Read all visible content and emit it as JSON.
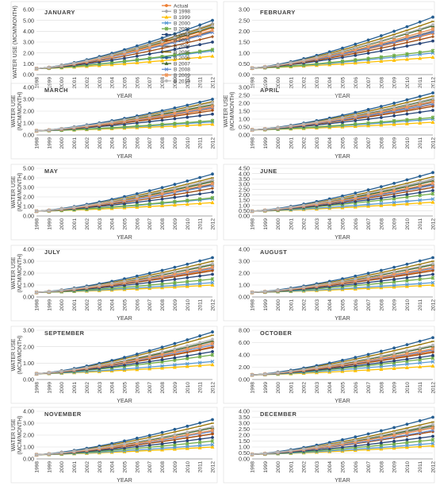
{
  "chart_data": {
    "type": "line",
    "x": [
      1998,
      1999,
      2000,
      2001,
      2002,
      2003,
      2004,
      2005,
      2006,
      2007,
      2008,
      2009,
      2010,
      2011,
      2012
    ],
    "x_tick_labels": [
      "1998",
      "1999",
      "2000",
      "2001",
      "2002",
      "2003",
      "2004",
      "2005",
      "2006",
      "2007",
      "2008",
      "2009",
      "2010",
      "2011",
      "2012"
    ],
    "xlabel": "YEAR",
    "grid": true,
    "legend_placement": "right",
    "legend_in_panel": 0,
    "series_styles": [
      {
        "name": "Actual",
        "color": "#ed7d31",
        "marker": "circle"
      },
      {
        "name": "B 1998",
        "color": "#a5a5a5",
        "marker": "diamond"
      },
      {
        "name": "B 1999",
        "color": "#ffc000",
        "marker": "triangle"
      },
      {
        "name": "B 2000",
        "color": "#5b9bd5",
        "marker": "x"
      },
      {
        "name": "B 2001",
        "color": "#70ad47",
        "marker": "star"
      },
      {
        "name": "B 2002",
        "color": "#264478",
        "marker": "circle"
      },
      {
        "name": "B 2003",
        "color": "#9e480e",
        "marker": "plus"
      },
      {
        "name": "B 2004",
        "color": "#636363",
        "marker": "dash"
      },
      {
        "name": "B 2005",
        "color": "#997300",
        "marker": "dash"
      },
      {
        "name": "B 2006",
        "color": "#255e91",
        "marker": "circle"
      },
      {
        "name": "B 2007",
        "color": "#43682b",
        "marker": "triangle"
      },
      {
        "name": "B 2008",
        "color": "#698ed0",
        "marker": "x"
      },
      {
        "name": "B 2009",
        "color": "#f1975a",
        "marker": "star"
      },
      {
        "name": "B 2010",
        "color": "#b7b7b7",
        "marker": "circle"
      }
    ],
    "panels": [
      {
        "title": "JANUARY",
        "ylabel": [
          "WATER USE (MCM/MONTH)"
        ],
        "ylim": [
          0,
          6
        ],
        "yticks": [
          "0.00",
          "1.00",
          "2.00",
          "3.00",
          "4.00",
          "5.00",
          "6.00"
        ],
        "series_end": [
          4.3,
          4.7,
          1.7,
          2.2,
          2.3,
          3.0,
          3.5,
          4.0,
          4.6,
          5.0,
          4.4,
          3.9,
          4.1,
          4.5
        ],
        "series_start": [
          0.55,
          0.55,
          0.55,
          0.55,
          0.55,
          0.55,
          0.55,
          0.55,
          0.55,
          0.55,
          0.55,
          0.55,
          0.55,
          0.55
        ]
      },
      {
        "title": "FEBRUARY",
        "ylabel": [],
        "ylim": [
          0,
          3
        ],
        "yticks": [
          "0.00",
          "0.50",
          "1.00",
          "1.50",
          "2.00",
          "2.50",
          "3.00"
        ],
        "series_end": [
          1.9,
          2.1,
          0.8,
          1.0,
          1.1,
          1.55,
          1.75,
          2.0,
          2.45,
          2.65,
          2.25,
          1.95,
          2.1,
          2.3
        ],
        "series_start": [
          0.3,
          0.3,
          0.3,
          0.3,
          0.3,
          0.3,
          0.3,
          0.3,
          0.3,
          0.3,
          0.3,
          0.3,
          0.3,
          0.3
        ]
      },
      {
        "title": "MARCH",
        "ylabel": [
          "WATER USE",
          "(MCM/MONTH)"
        ],
        "ylim": [
          0,
          4
        ],
        "yticks": [
          "0.00",
          "1.00",
          "2.00",
          "3.00",
          "4.00"
        ],
        "series_end": [
          2.2,
          2.5,
          0.9,
          1.1,
          1.2,
          1.75,
          2.05,
          2.35,
          2.8,
          3.0,
          2.55,
          2.3,
          2.4,
          2.7
        ],
        "series_start": [
          0.35,
          0.35,
          0.35,
          0.35,
          0.35,
          0.35,
          0.35,
          0.35,
          0.35,
          0.35,
          0.35,
          0.35,
          0.35,
          0.35
        ]
      },
      {
        "title": "APRIL",
        "ylabel": [
          "WATER USE",
          "(MCM/MONTH)"
        ],
        "ylim": [
          0,
          3
        ],
        "yticks": [
          "0.00",
          "0.50",
          "1.00",
          "1.50",
          "2.00",
          "2.50",
          "3.00"
        ],
        "series_end": [
          1.9,
          2.15,
          0.8,
          1.0,
          1.1,
          1.55,
          1.8,
          2.05,
          2.45,
          2.65,
          2.25,
          1.95,
          2.1,
          2.3
        ],
        "series_start": [
          0.32,
          0.32,
          0.32,
          0.32,
          0.32,
          0.32,
          0.32,
          0.32,
          0.32,
          0.32,
          0.32,
          0.32,
          0.32,
          0.32
        ]
      },
      {
        "title": "MAY",
        "ylabel": [
          "WATER USE",
          "(MCM/MONTH)"
        ],
        "ylim": [
          0,
          5
        ],
        "yticks": [
          "0.00",
          "1.00",
          "2.00",
          "3.00",
          "4.00",
          "5.00"
        ],
        "series_end": [
          3.3,
          3.7,
          1.4,
          1.8,
          1.9,
          2.5,
          2.9,
          3.3,
          4.0,
          4.4,
          3.6,
          3.2,
          3.4,
          3.8
        ],
        "series_start": [
          0.5,
          0.5,
          0.5,
          0.5,
          0.5,
          0.5,
          0.5,
          0.5,
          0.5,
          0.5,
          0.5,
          0.5,
          0.5,
          0.5
        ]
      },
      {
        "title": "JUNE",
        "ylabel": [],
        "ylim": [
          0,
          4.5
        ],
        "yticks": [
          "0.00",
          "0.50",
          "1.00",
          "1.50",
          "2.00",
          "2.50",
          "3.00",
          "3.50",
          "4.00",
          "4.50"
        ],
        "series_end": [
          2.9,
          3.4,
          1.3,
          1.6,
          2.1,
          2.4,
          2.7,
          3.0,
          3.7,
          4.1,
          3.3,
          2.9,
          3.1,
          3.5
        ],
        "series_start": [
          0.45,
          0.45,
          0.45,
          0.45,
          0.45,
          0.45,
          0.45,
          0.45,
          0.45,
          0.45,
          0.45,
          0.45,
          0.45,
          0.45
        ]
      },
      {
        "title": "JULY",
        "ylabel": [
          "WATER USE",
          "(MCM/MONTH)"
        ],
        "ylim": [
          0,
          4
        ],
        "yticks": [
          "0.00",
          "1.00",
          "2.00",
          "3.00",
          "4.00"
        ],
        "series_end": [
          2.3,
          2.7,
          1.0,
          1.2,
          1.5,
          1.9,
          2.2,
          2.5,
          3.0,
          3.3,
          2.7,
          2.4,
          2.5,
          2.8
        ],
        "series_start": [
          0.38,
          0.38,
          0.38,
          0.38,
          0.38,
          0.38,
          0.38,
          0.38,
          0.38,
          0.38,
          0.38,
          0.38,
          0.38,
          0.38
        ]
      },
      {
        "title": "AUGUST",
        "ylabel": [],
        "ylim": [
          0,
          4
        ],
        "yticks": [
          "0.00",
          "1.00",
          "2.00",
          "3.00",
          "4.00"
        ],
        "series_end": [
          2.3,
          2.7,
          1.0,
          1.2,
          1.6,
          1.9,
          2.2,
          2.5,
          3.0,
          3.3,
          2.7,
          2.4,
          2.5,
          2.8
        ],
        "series_start": [
          0.38,
          0.38,
          0.38,
          0.38,
          0.38,
          0.38,
          0.38,
          0.38,
          0.38,
          0.38,
          0.38,
          0.38,
          0.38,
          0.38
        ]
      },
      {
        "title": "SEPTEMBER",
        "ylabel": [
          "WATER USE",
          "(MCM/MONTH)"
        ],
        "ylim": [
          0,
          3
        ],
        "yticks": [
          "0.00",
          "1.00",
          "2.00",
          "3.00"
        ],
        "series_end": [
          2.0,
          2.3,
          0.9,
          1.1,
          1.5,
          1.7,
          1.95,
          2.2,
          2.7,
          2.9,
          2.35,
          2.1,
          2.2,
          2.45
        ],
        "series_start": [
          0.35,
          0.35,
          0.35,
          0.35,
          0.35,
          0.35,
          0.35,
          0.35,
          0.35,
          0.35,
          0.35,
          0.35,
          0.35,
          0.35
        ]
      },
      {
        "title": "OCTOBER",
        "ylabel": [],
        "ylim": [
          0,
          8
        ],
        "yticks": [
          "0.00",
          "2.00",
          "4.00",
          "6.00",
          "8.00"
        ],
        "series_end": [
          4.6,
          5.4,
          2.2,
          2.9,
          3.5,
          3.9,
          4.4,
          5.0,
          6.2,
          6.8,
          5.4,
          4.8,
          5.0,
          5.6
        ],
        "series_start": [
          0.75,
          0.75,
          0.75,
          0.75,
          0.75,
          0.75,
          0.75,
          0.75,
          0.75,
          0.75,
          0.75,
          0.75,
          0.75,
          0.75
        ]
      },
      {
        "title": "NOVEMBER",
        "ylabel": [
          "WATER USE",
          "(MCM/MONTH)"
        ],
        "ylim": [
          0,
          4
        ],
        "yticks": [
          "0.00",
          "1.00",
          "2.00",
          "3.00",
          "4.00"
        ],
        "series_end": [
          2.1,
          2.6,
          1.0,
          1.2,
          1.5,
          1.8,
          2.1,
          2.4,
          3.0,
          3.3,
          2.6,
          2.3,
          2.4,
          2.7
        ],
        "series_start": [
          0.35,
          0.35,
          0.35,
          0.35,
          0.35,
          0.35,
          0.35,
          0.35,
          0.35,
          0.35,
          0.35,
          0.35,
          0.35,
          0.35
        ]
      },
      {
        "title": "DECEMBER",
        "ylabel": [],
        "ylim": [
          0,
          4
        ],
        "yticks": [
          "0.00",
          "0.50",
          "1.00",
          "1.50",
          "2.00",
          "2.50",
          "3.00",
          "3.50",
          "4.00"
        ],
        "series_end": [
          2.3,
          2.7,
          1.1,
          1.3,
          1.6,
          1.9,
          2.3,
          2.6,
          3.1,
          3.5,
          2.8,
          2.4,
          2.6,
          2.9
        ],
        "series_start": [
          0.38,
          0.38,
          0.38,
          0.38,
          0.38,
          0.38,
          0.38,
          0.38,
          0.38,
          0.38,
          0.38,
          0.38,
          0.38,
          0.38
        ]
      }
    ]
  }
}
